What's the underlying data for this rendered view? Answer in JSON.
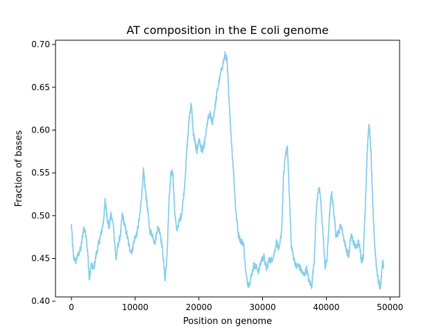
{
  "chart_data": {
    "type": "line",
    "title": "AT composition in the E coli genome",
    "xlabel": "Position on genome",
    "ylabel": "Fraction of bases",
    "xlim": [
      -2500,
      51500
    ],
    "ylim": [
      0.405,
      0.705
    ],
    "x_ticks": [
      0,
      10000,
      20000,
      30000,
      40000,
      50000
    ],
    "y_ticks": [
      0.4,
      0.45,
      0.5,
      0.55,
      0.6,
      0.65,
      0.7
    ],
    "grid": false,
    "legend": "none",
    "series": [
      {
        "color": "#87ceeb",
        "points": [
          [
            0,
            0.489
          ],
          [
            300,
            0.452
          ],
          [
            700,
            0.447
          ],
          [
            1100,
            0.455
          ],
          [
            1500,
            0.462
          ],
          [
            1900,
            0.485
          ],
          [
            2300,
            0.478
          ],
          [
            2600,
            0.452
          ],
          [
            2800,
            0.425
          ],
          [
            3100,
            0.442
          ],
          [
            3500,
            0.438
          ],
          [
            3900,
            0.455
          ],
          [
            4300,
            0.468
          ],
          [
            4600,
            0.477
          ],
          [
            5000,
            0.492
          ],
          [
            5300,
            0.518
          ],
          [
            5600,
            0.498
          ],
          [
            5900,
            0.485
          ],
          [
            6200,
            0.502
          ],
          [
            6600,
            0.488
          ],
          [
            7000,
            0.448
          ],
          [
            7300,
            0.465
          ],
          [
            7700,
            0.478
          ],
          [
            8000,
            0.502
          ],
          [
            8300,
            0.49
          ],
          [
            8700,
            0.478
          ],
          [
            9100,
            0.462
          ],
          [
            9500,
            0.458
          ],
          [
            9900,
            0.473
          ],
          [
            10300,
            0.48
          ],
          [
            10700,
            0.498
          ],
          [
            11000,
            0.522
          ],
          [
            11300,
            0.552
          ],
          [
            11600,
            0.53
          ],
          [
            11900,
            0.512
          ],
          [
            12300,
            0.482
          ],
          [
            12700,
            0.478
          ],
          [
            13100,
            0.468
          ],
          [
            13500,
            0.486
          ],
          [
            13900,
            0.482
          ],
          [
            14300,
            0.46
          ],
          [
            14700,
            0.425
          ],
          [
            15000,
            0.452
          ],
          [
            15300,
            0.515
          ],
          [
            15600,
            0.548
          ],
          [
            15900,
            0.552
          ],
          [
            16200,
            0.505
          ],
          [
            16500,
            0.483
          ],
          [
            16900,
            0.493
          ],
          [
            17300,
            0.502
          ],
          [
            17700,
            0.53
          ],
          [
            18100,
            0.575
          ],
          [
            18500,
            0.615
          ],
          [
            18800,
            0.632
          ],
          [
            19100,
            0.598
          ],
          [
            19400,
            0.585
          ],
          [
            19700,
            0.575
          ],
          [
            20000,
            0.59
          ],
          [
            20300,
            0.58
          ],
          [
            20600,
            0.575
          ],
          [
            21000,
            0.59
          ],
          [
            21400,
            0.612
          ],
          [
            21800,
            0.618
          ],
          [
            22100,
            0.608
          ],
          [
            22500,
            0.625
          ],
          [
            22900,
            0.646
          ],
          [
            23300,
            0.662
          ],
          [
            23700,
            0.675
          ],
          [
            24100,
            0.688
          ],
          [
            24400,
            0.682
          ],
          [
            24700,
            0.642
          ],
          [
            25000,
            0.6
          ],
          [
            25400,
            0.555
          ],
          [
            25800,
            0.505
          ],
          [
            26200,
            0.478
          ],
          [
            26600,
            0.47
          ],
          [
            27000,
            0.468
          ],
          [
            27400,
            0.43
          ],
          [
            27800,
            0.418
          ],
          [
            28200,
            0.428
          ],
          [
            28600,
            0.442
          ],
          [
            29000,
            0.44
          ],
          [
            29400,
            0.435
          ],
          [
            29800,
            0.448
          ],
          [
            30200,
            0.452
          ],
          [
            30600,
            0.438
          ],
          [
            31000,
            0.448
          ],
          [
            31400,
            0.448
          ],
          [
            31800,
            0.455
          ],
          [
            32200,
            0.47
          ],
          [
            32600,
            0.458
          ],
          [
            33000,
            0.485
          ],
          [
            33300,
            0.548
          ],
          [
            33600,
            0.572
          ],
          [
            33900,
            0.578
          ],
          [
            34200,
            0.525
          ],
          [
            34500,
            0.465
          ],
          [
            34900,
            0.45
          ],
          [
            35300,
            0.44
          ],
          [
            35700,
            0.442
          ],
          [
            36100,
            0.435
          ],
          [
            36500,
            0.43
          ],
          [
            36900,
            0.438
          ],
          [
            37300,
            0.423
          ],
          [
            37700,
            0.418
          ],
          [
            38100,
            0.448
          ],
          [
            38400,
            0.502
          ],
          [
            38700,
            0.53
          ],
          [
            39000,
            0.528
          ],
          [
            39400,
            0.488
          ],
          [
            39800,
            0.44
          ],
          [
            40100,
            0.448
          ],
          [
            40500,
            0.5
          ],
          [
            40800,
            0.528
          ],
          [
            41100,
            0.51
          ],
          [
            41500,
            0.478
          ],
          [
            41900,
            0.48
          ],
          [
            42300,
            0.49
          ],
          [
            42700,
            0.475
          ],
          [
            43100,
            0.462
          ],
          [
            43500,
            0.452
          ],
          [
            43900,
            0.478
          ],
          [
            44300,
            0.468
          ],
          [
            44700,
            0.462
          ],
          [
            45100,
            0.472
          ],
          [
            45500,
            0.448
          ],
          [
            45800,
            0.452
          ],
          [
            46100,
            0.508
          ],
          [
            46400,
            0.572
          ],
          [
            46700,
            0.608
          ],
          [
            47000,
            0.575
          ],
          [
            47300,
            0.51
          ],
          [
            47600,
            0.465
          ],
          [
            47900,
            0.438
          ],
          [
            48200,
            0.422
          ],
          [
            48500,
            0.416
          ],
          [
            48800,
            0.445
          ],
          [
            49000,
            0.442
          ]
        ]
      }
    ]
  }
}
